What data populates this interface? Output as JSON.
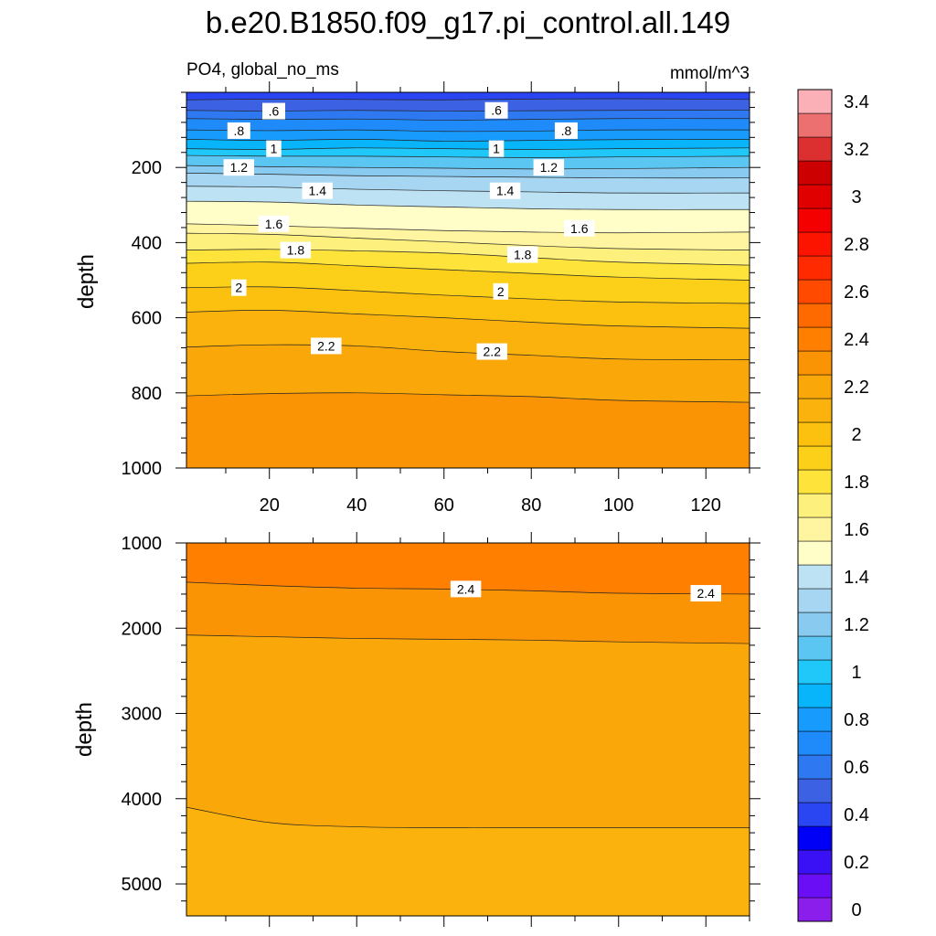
{
  "chart_data": {
    "type": "contour",
    "title": "b.e20.B1850.f09_g17.pi_control.all.149",
    "subtitle_left": "PO4, global_no_ms",
    "subtitle_right": "mmol/m^3",
    "variable": "PO4",
    "units": "mmol/m^3",
    "x": {
      "range": [
        1,
        130
      ],
      "ticks": [
        20,
        40,
        60,
        80,
        100,
        120
      ],
      "tick_labels": [
        "20",
        "40",
        "60",
        "80",
        "100",
        "120"
      ]
    },
    "panels": [
      {
        "name": "upper",
        "ylabel": "depth",
        "ylim": [
          0,
          1000
        ],
        "yticks": [
          200,
          400,
          600,
          800,
          1000
        ],
        "ytick_labels": [
          "200",
          "400",
          "600",
          "800",
          "1000"
        ],
        "contour_levels": [
          {
            "value": 0.5,
            "depths": [
              20,
              18,
              19,
              20,
              18,
              17,
              19
            ]
          },
          {
            "value": 0.6,
            "depths": [
              48,
              50,
              48,
              50,
              49,
              48,
              47
            ]
          },
          {
            "value": 0.7,
            "depths": [
              70,
              72,
              71,
              74,
              72,
              70,
              70
            ]
          },
          {
            "value": 0.8,
            "depths": [
              100,
              102,
              100,
              104,
              103,
              100,
              100
            ]
          },
          {
            "value": 0.9,
            "depths": [
              125,
              128,
              125,
              130,
              128,
              126,
              125
            ]
          },
          {
            "value": 1.0,
            "depths": [
              150,
              152,
              148,
              150,
              152,
              150,
              148
            ]
          },
          {
            "value": 1.1,
            "depths": [
              168,
              170,
              170,
              172,
              174,
              172,
              170
            ]
          },
          {
            "value": 1.2,
            "depths": [
              195,
              198,
              200,
              202,
              204,
              203,
              200
            ]
          },
          {
            "value": 1.3,
            "depths": [
              215,
              218,
              222,
              224,
              226,
              228,
              228
            ]
          },
          {
            "value": 1.4,
            "depths": [
              250,
              252,
              258,
              262,
              265,
              268,
              268
            ]
          },
          {
            "value": 1.5,
            "depths": [
              290,
              292,
              300,
              305,
              310,
              312,
              312
            ]
          },
          {
            "value": 1.6,
            "depths": [
              350,
              355,
              362,
              368,
              372,
              374,
              372
            ]
          },
          {
            "value": 1.7,
            "depths": [
              375,
              378,
              388,
              398,
              408,
              416,
              420
            ]
          },
          {
            "value": 1.8,
            "depths": [
              420,
              418,
              422,
              428,
              440,
              452,
              460
            ]
          },
          {
            "value": 1.9,
            "depths": [
              455,
              452,
              462,
              472,
              482,
              492,
              500
            ]
          },
          {
            "value": 2.0,
            "depths": [
              520,
              518,
              528,
              540,
              550,
              558,
              562
            ]
          },
          {
            "value": 2.1,
            "depths": [
              585,
              580,
              590,
              600,
              612,
              622,
              628
            ]
          },
          {
            "value": 2.2,
            "depths": [
              678,
              672,
              675,
              690,
              700,
              710,
              712
            ]
          },
          {
            "value": 2.3,
            "depths": [
              808,
              802,
              800,
              805,
              810,
              820,
              825
            ]
          }
        ],
        "contour_labels": [
          {
            "text": ".6",
            "x": 21,
            "depth": 50
          },
          {
            "text": ".6",
            "x": 72,
            "depth": 48
          },
          {
            "text": ".8",
            "x": 13,
            "depth": 102
          },
          {
            "text": ".8",
            "x": 88,
            "depth": 102
          },
          {
            "text": "1",
            "x": 21,
            "depth": 150
          },
          {
            "text": "1",
            "x": 72,
            "depth": 150
          },
          {
            "text": "1.2",
            "x": 13,
            "depth": 200
          },
          {
            "text": "1.2",
            "x": 84,
            "depth": 200
          },
          {
            "text": "1.4",
            "x": 31,
            "depth": 262
          },
          {
            "text": "1.4",
            "x": 74,
            "depth": 262
          },
          {
            "text": "1.6",
            "x": 21,
            "depth": 350
          },
          {
            "text": "1.6",
            "x": 91,
            "depth": 362
          },
          {
            "text": "1.8",
            "x": 26,
            "depth": 420
          },
          {
            "text": "1.8",
            "x": 78,
            "depth": 432
          },
          {
            "text": "2",
            "x": 13,
            "depth": 520
          },
          {
            "text": "2",
            "x": 73,
            "depth": 530
          },
          {
            "text": "2.2",
            "x": 33,
            "depth": 675
          },
          {
            "text": "2.2",
            "x": 71,
            "depth": 690
          }
        ]
      },
      {
        "name": "lower",
        "ylabel": "depth",
        "ylim": [
          1000,
          5375
        ],
        "yticks": [
          1000,
          2000,
          3000,
          4000,
          5000
        ],
        "ytick_labels": [
          "1000",
          "2000",
          "3000",
          "4000",
          "5000"
        ],
        "contour_levels": [
          {
            "value": 2.4,
            "depths": [
              1460,
              1500,
              1530,
              1540,
              1560,
              1590,
              1600
            ]
          },
          {
            "value": 2.3,
            "depths": [
              2080,
              2100,
              2120,
              2130,
              2140,
              2160,
              2180
            ]
          },
          {
            "value": 2.2,
            "depths": [
              4100,
              4280,
              4330,
              4340,
              4340,
              4340,
              4340
            ]
          }
        ],
        "contour_labels": [
          {
            "text": "2.4",
            "x": 65,
            "depth": 1540
          },
          {
            "text": "2.4",
            "x": 120,
            "depth": 1590
          }
        ]
      }
    ],
    "contour_x": [
      1,
      20,
      40,
      60,
      80,
      100,
      130
    ],
    "colorbar": {
      "label_levels": [
        0,
        0.2,
        0.4,
        0.6,
        0.8,
        1,
        1.2,
        1.4,
        1.6,
        1.8,
        2,
        2.2,
        2.4,
        2.6,
        2.8,
        3,
        3.2,
        3.4
      ],
      "tick_labels": [
        "0",
        "0.2",
        "0.4",
        "0.6",
        "0.8",
        "1",
        "1.2",
        "1.4",
        "1.6",
        "1.8",
        "2",
        "2.2",
        "2.4",
        "2.6",
        "2.8",
        "3",
        "3.2",
        "3.4"
      ],
      "colors": [
        "#8c1eeb",
        "#6a0ff5",
        "#3a10f4",
        "#0000f7",
        "#2a45f2",
        "#3c62e3",
        "#2e78f2",
        "#1f8bfb",
        "#179bfc",
        "#08b5fb",
        "#20c8fa",
        "#5cc6f3",
        "#89caf0",
        "#a6d6f1",
        "#bde2f4",
        "#fffdc8",
        "#fff5a0",
        "#fdf07d",
        "#fee33a",
        "#fcd019",
        "#fcc10f",
        "#fbb20c",
        "#faa70a",
        "#fa9405",
        "#ff7f00",
        "#ff6a00",
        "#ff4a00",
        "#ff2a00",
        "#fd1400",
        "#f40000",
        "#e00000",
        "#cc0000",
        "#dc3030",
        "#ec7070",
        "#fbb0b8"
      ]
    }
  }
}
